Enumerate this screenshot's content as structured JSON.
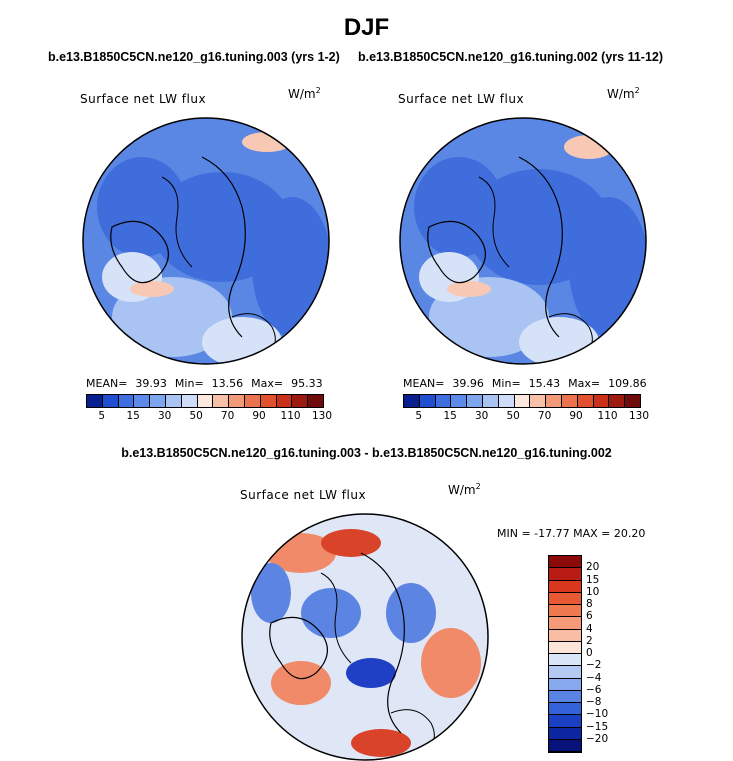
{
  "season": "DJF",
  "case1": {
    "title": "b.e13.B1850C5CN.ne120_g16.tuning.003 (yrs 1-2)"
  },
  "case2": {
    "title": "b.e13.B1850C5CN.ne120_g16.tuning.002 (yrs 11-12)"
  },
  "diff": {
    "title": "b.e13.B1850C5CN.ne120_g16.tuning.003 - b.e13.B1850C5CN.ne120_g16.tuning.002"
  },
  "panels": {
    "p1": {
      "variable": "Surface net LW flux",
      "units": "W/m",
      "units_exp": "2",
      "mean_label": "MEAN=",
      "mean": "39.93",
      "min_label": "Min=",
      "min": "13.56",
      "max_label": "Max=",
      "max": "95.33"
    },
    "p2": {
      "variable": "Surface net LW flux",
      "units": "W/m",
      "units_exp": "2",
      "mean_label": "MEAN=",
      "mean": "39.96",
      "min_label": "Min=",
      "min": "15.43",
      "max_label": "Max=",
      "max": "109.86"
    },
    "p3": {
      "variable": "Surface net LW flux",
      "units": "W/m",
      "units_exp": "2",
      "minmax": "MIN = -17.77 MAX =  20.20"
    }
  },
  "colorbar_abs": {
    "labels": [
      "5",
      "15",
      "30",
      "50",
      "70",
      "90",
      "110",
      "130"
    ],
    "colors": [
      "#0a1f8f",
      "#1f4fd0",
      "#3d6fe0",
      "#5b8ae8",
      "#7ea6ee",
      "#a9c4f3",
      "#cfdcf7",
      "#fde8df",
      "#f7c0a8",
      "#f29a78",
      "#ec7350",
      "#e2512f",
      "#c9311b",
      "#9c1a10",
      "#6e0b0b"
    ]
  },
  "colorbar_diff": {
    "labels": [
      "20",
      "15",
      "10",
      "8",
      "6",
      "4",
      "2",
      "0",
      "−2",
      "−4",
      "−6",
      "−8",
      "−10",
      "−15",
      "−20"
    ],
    "colors": [
      "#8c0a0a",
      "#b81c14",
      "#d8381e",
      "#e85a33",
      "#f07a50",
      "#f59a78",
      "#f9bda4",
      "#fde4d8",
      "#dbe6f8",
      "#b4caf3",
      "#86a8ec",
      "#5a84e3",
      "#3462d8",
      "#1a40c4",
      "#0c25a0",
      "#07127a"
    ]
  },
  "map_colors": {
    "ocean_base": "#5a86e4",
    "deep": "#3f6ddc",
    "light": "#a9c4f3",
    "pale": "#d6e2f8",
    "warm": "#f7c9b4",
    "diff_base": "#dfe7f7",
    "diff_red": "#f08a68",
    "diff_dark_red": "#d8432a",
    "diff_blue": "#5b84e3",
    "diff_dark_blue": "#1f3fc4"
  }
}
